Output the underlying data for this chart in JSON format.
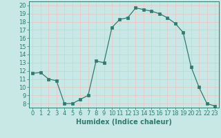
{
  "x": [
    0,
    1,
    2,
    3,
    4,
    5,
    6,
    7,
    8,
    9,
    10,
    11,
    12,
    13,
    14,
    15,
    16,
    17,
    18,
    19,
    20,
    21,
    22,
    23
  ],
  "y": [
    11.7,
    11.8,
    11.0,
    10.8,
    8.0,
    8.0,
    8.5,
    9.0,
    13.2,
    13.0,
    17.3,
    18.3,
    18.5,
    19.7,
    19.5,
    19.3,
    19.0,
    18.5,
    17.8,
    16.7,
    12.5,
    10.0,
    8.0,
    7.7
  ],
  "xlabel": "Humidex (Indice chaleur)",
  "ylim": [
    7.5,
    20.5
  ],
  "xlim": [
    -0.5,
    23.5
  ],
  "yticks": [
    8,
    9,
    10,
    11,
    12,
    13,
    14,
    15,
    16,
    17,
    18,
    19,
    20
  ],
  "xticks": [
    0,
    1,
    2,
    3,
    4,
    5,
    6,
    7,
    8,
    9,
    10,
    11,
    12,
    13,
    14,
    15,
    16,
    17,
    18,
    19,
    20,
    21,
    22,
    23
  ],
  "line_color": "#2e7b6e",
  "marker": "s",
  "marker_size": 2.5,
  "bg_color": "#c8e8e5",
  "grid_color": "#e8c8c8",
  "axis_color": "#2e7b6e",
  "font_size_xlabel": 7,
  "font_size_ticks": 6
}
